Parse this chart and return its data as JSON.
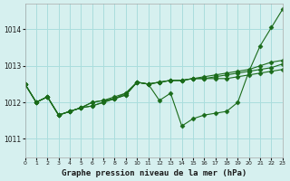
{
  "title": "Graphe pression niveau de la mer (hPa)",
  "background_color": "#d6f0ef",
  "grid_color": "#aadddd",
  "line_color": "#1a6b1a",
  "xlim": [
    0,
    23
  ],
  "ylim": [
    1010.5,
    1014.7
  ],
  "yticks": [
    1011,
    1012,
    1013,
    1014
  ],
  "xticks": [
    0,
    1,
    2,
    3,
    4,
    5,
    6,
    7,
    8,
    9,
    10,
    11,
    12,
    13,
    14,
    15,
    16,
    17,
    18,
    19,
    20,
    21,
    22,
    23
  ],
  "series": [
    [
      1012.5,
      1012.0,
      1012.15,
      1011.65,
      1011.75,
      1011.85,
      1011.9,
      1012.0,
      1012.1,
      1012.2,
      1012.55,
      1012.5,
      1012.05,
      1012.25,
      1011.35,
      1011.55,
      1011.65,
      1011.7,
      1011.75,
      1012.0,
      1012.85,
      1013.55,
      1014.05,
      1014.55
    ],
    [
      1012.5,
      1012.0,
      1012.15,
      1011.65,
      1011.75,
      1011.85,
      1011.9,
      1012.0,
      1012.1,
      1012.25,
      1012.55,
      1012.5,
      1012.55,
      1012.6,
      1012.6,
      1012.65,
      1012.7,
      1012.75,
      1012.8,
      1012.85,
      1012.9,
      1013.0,
      1013.1,
      1013.15
    ],
    [
      1012.5,
      1012.0,
      1012.15,
      1011.65,
      1011.75,
      1011.85,
      1012.0,
      1012.05,
      1012.15,
      1012.25,
      1012.55,
      1012.5,
      1012.55,
      1012.6,
      1012.6,
      1012.65,
      1012.65,
      1012.7,
      1012.75,
      1012.8,
      1012.85,
      1012.9,
      1012.95,
      1013.05
    ],
    [
      1012.5,
      1012.0,
      1012.15,
      1011.65,
      1011.75,
      1011.85,
      1012.0,
      1012.05,
      1012.1,
      1012.2,
      1012.55,
      1012.5,
      1012.55,
      1012.6,
      1012.6,
      1012.65,
      1012.65,
      1012.65,
      1012.65,
      1012.7,
      1012.75,
      1012.8,
      1012.85,
      1012.9
    ]
  ]
}
